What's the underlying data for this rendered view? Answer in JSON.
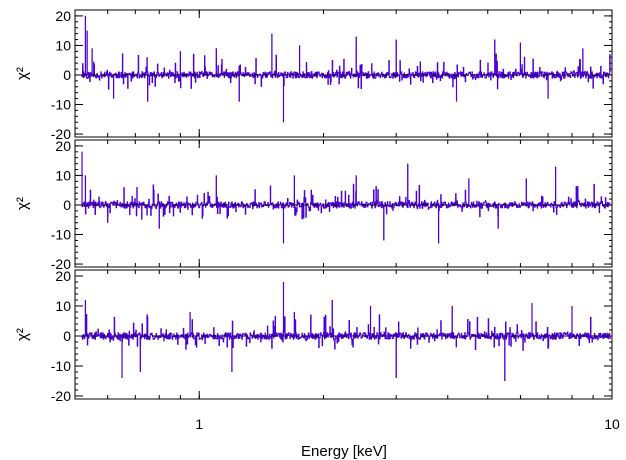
{
  "chart_data": [
    {
      "type": "line",
      "panel": 1,
      "ylabel": "χ²",
      "ylim": [
        -21,
        22
      ],
      "yticks": [
        -20,
        -10,
        0,
        10,
        20
      ],
      "xscale": "log",
      "xlim": [
        0.5,
        10
      ],
      "line_color": "#4b00d6",
      "zero_line": "dashed",
      "seed": 11,
      "spikes": [
        {
          "x": 0.53,
          "y": 20
        },
        {
          "x": 0.535,
          "y": 15
        },
        {
          "x": 0.55,
          "y": 9
        },
        {
          "x": 0.62,
          "y": -8
        },
        {
          "x": 0.75,
          "y": -9
        },
        {
          "x": 0.9,
          "y": 8
        },
        {
          "x": 1.1,
          "y": 9
        },
        {
          "x": 1.25,
          "y": -9
        },
        {
          "x": 1.5,
          "y": 14
        },
        {
          "x": 1.6,
          "y": -16
        },
        {
          "x": 1.75,
          "y": 10
        },
        {
          "x": 2.4,
          "y": 13
        },
        {
          "x": 3.0,
          "y": 12
        },
        {
          "x": 4.2,
          "y": -9
        },
        {
          "x": 5.2,
          "y": 12
        },
        {
          "x": 6.0,
          "y": 11
        },
        {
          "x": 7.0,
          "y": -8
        },
        {
          "x": 8.5,
          "y": 9
        }
      ]
    },
    {
      "type": "line",
      "panel": 2,
      "ylabel": "χ²",
      "ylim": [
        -21,
        22
      ],
      "yticks": [
        -20,
        -10,
        0,
        10,
        20
      ],
      "xscale": "log",
      "xlim": [
        0.5,
        10
      ],
      "line_color": "#4b00d6",
      "zero_line": "dashed",
      "seed": 29,
      "spikes": [
        {
          "x": 0.52,
          "y": 18
        },
        {
          "x": 0.53,
          "y": 10
        },
        {
          "x": 0.6,
          "y": -6
        },
        {
          "x": 0.8,
          "y": -8
        },
        {
          "x": 1.1,
          "y": 10
        },
        {
          "x": 1.6,
          "y": -13
        },
        {
          "x": 1.7,
          "y": 10
        },
        {
          "x": 2.4,
          "y": 10
        },
        {
          "x": 2.8,
          "y": -12
        },
        {
          "x": 3.2,
          "y": 14
        },
        {
          "x": 3.8,
          "y": -13
        },
        {
          "x": 4.5,
          "y": 9
        },
        {
          "x": 5.3,
          "y": -8
        },
        {
          "x": 6.2,
          "y": 9
        },
        {
          "x": 7.3,
          "y": 13
        }
      ]
    },
    {
      "type": "line",
      "panel": 3,
      "ylabel": "χ²",
      "ylim": [
        -21,
        22
      ],
      "yticks": [
        -20,
        -10,
        0,
        10,
        20
      ],
      "xscale": "log",
      "xlim": [
        0.5,
        10
      ],
      "xticks": [
        1,
        10
      ],
      "xlabel": "Energy [keV]",
      "line_color": "#4b00d6",
      "zero_line": "dashed",
      "seed": 47,
      "spikes": [
        {
          "x": 0.53,
          "y": 12
        },
        {
          "x": 0.65,
          "y": -14
        },
        {
          "x": 0.72,
          "y": -12
        },
        {
          "x": 0.95,
          "y": 8
        },
        {
          "x": 1.2,
          "y": -12
        },
        {
          "x": 1.6,
          "y": 18
        },
        {
          "x": 1.7,
          "y": 8
        },
        {
          "x": 2.1,
          "y": 12
        },
        {
          "x": 2.6,
          "y": 10
        },
        {
          "x": 3.0,
          "y": -14
        },
        {
          "x": 4.1,
          "y": 10
        },
        {
          "x": 5.5,
          "y": -15
        },
        {
          "x": 6.4,
          "y": 11
        },
        {
          "x": 8.0,
          "y": 10
        }
      ]
    }
  ]
}
